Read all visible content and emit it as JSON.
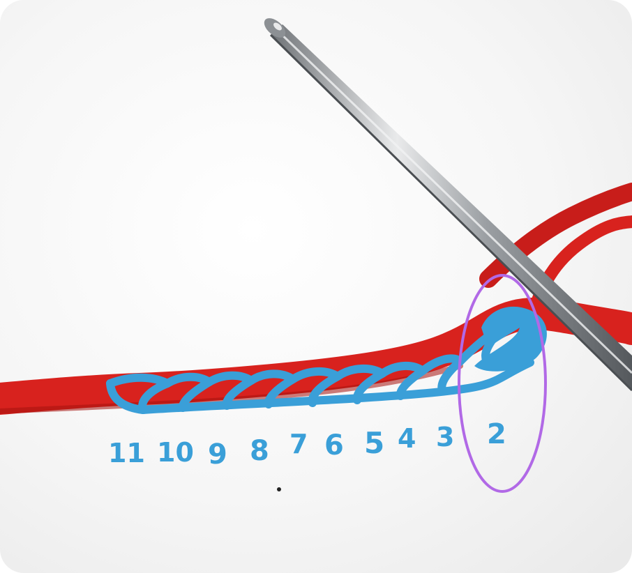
{
  "image": {
    "subject": "crochet foundation chain with hook",
    "colors": {
      "yarn": "#d8221e",
      "yarn_dark": "#a5120f",
      "hook": "#b9bcc0",
      "annotation": "#3a9fd8",
      "circle": "#b169e6",
      "paper": "#f4f4f4"
    }
  },
  "stitch_labels": [
    "11",
    "10",
    "9",
    "8",
    "7",
    "6",
    "5",
    "4",
    "3",
    "2"
  ],
  "highlighted_stitch": "2"
}
